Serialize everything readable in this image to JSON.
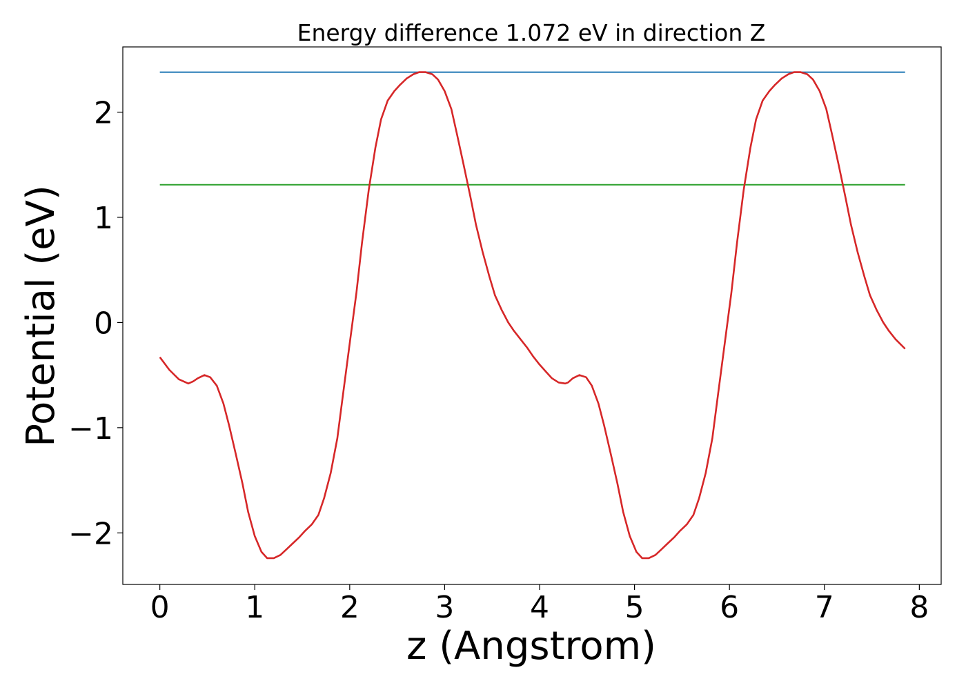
{
  "chart_data": {
    "type": "line",
    "title": "Energy difference 1.072 eV in direction Z",
    "xlabel": "z (Angstrom)",
    "ylabel": "Potential (eV)",
    "xlim": [
      -0.39,
      8.23
    ],
    "ylim": [
      -2.49,
      2.62
    ],
    "xticks": [
      0,
      1,
      2,
      3,
      4,
      5,
      6,
      7,
      8
    ],
    "yticks": [
      -2,
      -1,
      0,
      1,
      2
    ],
    "grid": false,
    "legend": "none",
    "colors": {
      "potential": "#d62728",
      "maximum": "#1f77b4",
      "average": "#2ca02c"
    },
    "hlines": [
      {
        "y": 2.38,
        "x": [
          0,
          7.85
        ],
        "color": "#1f77b4"
      },
      {
        "y": 1.31,
        "x": [
          0,
          7.85
        ],
        "color": "#2ca02c"
      }
    ],
    "series": [
      {
        "color": "#d62728",
        "x": [
          0,
          0.1,
          0.2,
          0.3,
          0.35,
          0.4,
          0.47,
          0.53,
          0.6,
          0.67,
          0.73,
          0.8,
          0.87,
          0.93,
          1.0,
          1.07,
          1.13,
          1.2,
          1.27,
          1.33,
          1.4,
          1.47,
          1.53,
          1.6,
          1.67,
          1.73,
          1.8,
          1.87,
          1.93,
          2.0,
          2.07,
          2.13,
          2.2,
          2.27,
          2.33,
          2.4,
          2.47,
          2.53,
          2.6,
          2.67,
          2.73,
          2.8,
          2.87,
          2.93,
          3.0,
          3.07,
          3.13,
          3.2,
          3.27,
          3.33,
          3.4,
          3.47,
          3.53,
          3.6,
          3.67,
          3.73,
          3.8,
          3.87,
          3.93,
          4.0,
          4.07,
          4.13,
          4.2,
          4.27,
          4.3,
          4.35,
          4.42,
          4.49,
          4.55,
          4.62,
          4.68,
          4.75,
          4.82,
          4.88,
          4.95,
          5.02,
          5.08,
          5.15,
          5.22,
          5.28,
          5.35,
          5.42,
          5.48,
          5.55,
          5.62,
          5.68,
          5.75,
          5.82,
          5.88,
          5.95,
          6.02,
          6.08,
          6.15,
          6.22,
          6.28,
          6.35,
          6.42,
          6.48,
          6.55,
          6.62,
          6.68,
          6.75,
          6.82,
          6.88,
          6.95,
          7.02,
          7.08,
          7.15,
          7.22,
          7.28,
          7.35,
          7.42,
          7.48,
          7.55,
          7.62,
          7.68,
          7.75,
          7.85
        ],
        "y": [
          -0.33,
          -0.45,
          -0.54,
          -0.58,
          -0.56,
          -0.53,
          -0.5,
          -0.52,
          -0.6,
          -0.77,
          -0.98,
          -1.25,
          -1.53,
          -1.8,
          -2.03,
          -2.18,
          -2.24,
          -2.24,
          -2.21,
          -2.16,
          -2.1,
          -2.04,
          -1.98,
          -1.92,
          -1.83,
          -1.67,
          -1.43,
          -1.1,
          -0.68,
          -0.2,
          0.28,
          0.76,
          1.26,
          1.66,
          1.93,
          2.11,
          2.2,
          2.26,
          2.32,
          2.36,
          2.38,
          2.38,
          2.36,
          2.31,
          2.2,
          2.03,
          1.79,
          1.5,
          1.2,
          0.93,
          0.67,
          0.44,
          0.26,
          0.12,
          0.0,
          -0.08,
          -0.16,
          -0.24,
          -0.32,
          -0.4,
          -0.47,
          -0.53,
          -0.57,
          -0.58,
          -0.57,
          -0.53,
          -0.5,
          -0.52,
          -0.6,
          -0.77,
          -0.98,
          -1.25,
          -1.53,
          -1.8,
          -2.03,
          -2.18,
          -2.24,
          -2.24,
          -2.21,
          -2.16,
          -2.1,
          -2.04,
          -1.98,
          -1.92,
          -1.83,
          -1.67,
          -1.43,
          -1.1,
          -0.68,
          -0.2,
          0.28,
          0.76,
          1.26,
          1.66,
          1.93,
          2.11,
          2.2,
          2.26,
          2.32,
          2.36,
          2.38,
          2.38,
          2.36,
          2.31,
          2.2,
          2.03,
          1.79,
          1.5,
          1.2,
          0.93,
          0.67,
          0.44,
          0.26,
          0.12,
          0.0,
          -0.08,
          -0.16,
          -0.25
        ]
      }
    ]
  }
}
